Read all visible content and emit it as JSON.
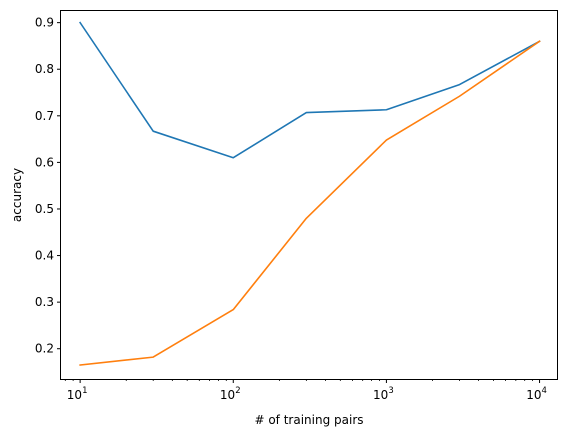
{
  "chart_data": {
    "type": "line",
    "title": "",
    "xlabel": "# of training pairs",
    "ylabel": "accuracy",
    "xscale": "log",
    "xlim": [
      7.5,
      13000
    ],
    "ylim": [
      0.135,
      0.925
    ],
    "grid": false,
    "x": [
      10,
      30,
      100,
      300,
      1000,
      3000,
      10000
    ],
    "x_ticks": [
      {
        "value": 10,
        "base": "10",
        "exp": "1"
      },
      {
        "value": 100,
        "base": "10",
        "exp": "2"
      },
      {
        "value": 1000,
        "base": "10",
        "exp": "3"
      },
      {
        "value": 10000,
        "base": "10",
        "exp": "4"
      }
    ],
    "y_ticks": [
      {
        "value": 0.2,
        "label": "0.2"
      },
      {
        "value": 0.3,
        "label": "0.3"
      },
      {
        "value": 0.4,
        "label": "0.4"
      },
      {
        "value": 0.5,
        "label": "0.5"
      },
      {
        "value": 0.6,
        "label": "0.6"
      },
      {
        "value": 0.7,
        "label": "0.7"
      },
      {
        "value": 0.8,
        "label": "0.8"
      },
      {
        "value": 0.9,
        "label": "0.9"
      }
    ],
    "series": [
      {
        "color": "#1f77b4",
        "values": [
          0.9,
          0.667,
          0.61,
          0.707,
          0.713,
          0.767,
          0.86
        ]
      },
      {
        "color": "#ff7f0e",
        "values": [
          0.165,
          0.182,
          0.284,
          0.48,
          0.648,
          0.742,
          0.86
        ]
      }
    ]
  }
}
